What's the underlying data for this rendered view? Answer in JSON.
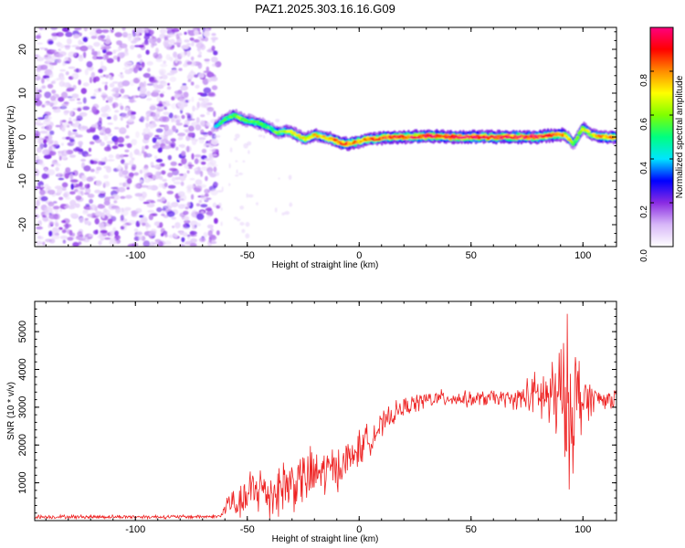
{
  "figure_title": "PAZ1.2025.303.16.16.G09",
  "chart_data": [
    {
      "type": "heatmap",
      "title": "PAZ1.2025.303.16.16.G09",
      "xlabel": "Height of straight line (km)",
      "ylabel": "Frequency (Hz)",
      "xlim": [
        -145,
        115
      ],
      "ylim": [
        -25,
        25
      ],
      "x_ticks": [
        -100,
        -50,
        0,
        50,
        100
      ],
      "x_tick_labels": [
        "-100",
        "-50",
        "0",
        "50",
        "100"
      ],
      "y_ticks": [
        -20,
        -10,
        0,
        10,
        20
      ],
      "y_tick_labels": [
        "-20",
        "-10",
        "0",
        "10",
        "20"
      ],
      "noise_region_x": [
        -145,
        -63
      ],
      "signal_ridge": {
        "x": [
          -64,
          -60,
          -56,
          -52,
          -48,
          -44,
          -40,
          -36,
          -32,
          -28,
          -24,
          -20,
          -16,
          -12,
          -8,
          -4,
          0,
          4,
          8,
          12,
          16,
          20,
          30,
          40,
          50,
          60,
          70,
          80,
          88,
          92,
          96,
          100,
          104,
          108,
          115
        ],
        "freq": [
          2.5,
          4.0,
          5.0,
          4.0,
          3.5,
          3.0,
          2.0,
          1.0,
          1.5,
          0.5,
          -0.5,
          0.5,
          0.0,
          -0.5,
          -1.5,
          -1.5,
          -1.0,
          -0.5,
          -0.5,
          0.0,
          0.0,
          0.0,
          0.2,
          0.0,
          0.0,
          0.0,
          0.0,
          0.0,
          0.5,
          0.5,
          -1.5,
          2.0,
          0.5,
          0.0,
          0.0
        ],
        "amplitude": [
          0.45,
          0.55,
          0.6,
          0.6,
          0.55,
          0.6,
          0.55,
          0.6,
          0.65,
          0.7,
          0.7,
          0.75,
          0.75,
          0.8,
          0.9,
          0.85,
          0.8,
          0.85,
          0.85,
          0.9,
          0.9,
          0.9,
          0.95,
          0.95,
          0.95,
          0.97,
          0.95,
          0.95,
          0.9,
          0.8,
          0.6,
          0.7,
          0.7,
          0.8,
          0.85
        ]
      },
      "colorbar": {
        "label": "Normalized spectral amplitude",
        "range": [
          0.0,
          1.0
        ],
        "ticks": [
          0.0,
          0.2,
          0.4,
          0.6,
          0.8
        ],
        "tick_labels": [
          "0.0",
          "0.2",
          "0.4",
          "0.6",
          "0.8"
        ],
        "colors": [
          "#ffffff",
          "#d8b8f8",
          "#8a2be2",
          "#0000ff",
          "#00e5ff",
          "#00ff80",
          "#80ff00",
          "#ffff00",
          "#ff8c00",
          "#ff0000",
          "#ff007f"
        ]
      }
    },
    {
      "type": "line",
      "xlabel": "Height of straight line (km)",
      "ylabel": "SNR (10 * v/v)",
      "xlim": [
        -145,
        115
      ],
      "ylim": [
        0,
        5800
      ],
      "x_ticks": [
        -100,
        -50,
        0,
        50,
        100
      ],
      "x_tick_labels": [
        "-100",
        "-50",
        "0",
        "50",
        "100"
      ],
      "y_ticks": [
        1000,
        2000,
        3000,
        4000,
        5000
      ],
      "y_tick_labels": [
        "1000",
        "2000",
        "3000",
        "4000",
        "5000"
      ],
      "line_color": "#ee2222",
      "envelope": {
        "x": [
          -145,
          -120,
          -100,
          -80,
          -62,
          -58,
          -54,
          -50,
          -45,
          -40,
          -35,
          -30,
          -25,
          -20,
          -15,
          -10,
          -5,
          0,
          5,
          10,
          15,
          20,
          25,
          30,
          40,
          50,
          60,
          70,
          75,
          80,
          85,
          90,
          93,
          95,
          97,
          100,
          105,
          110,
          115
        ],
        "mean": [
          100,
          100,
          100,
          100,
          110,
          500,
          400,
          600,
          900,
          700,
          900,
          1000,
          1100,
          1200,
          1300,
          1400,
          1600,
          1900,
          2200,
          2500,
          2800,
          3000,
          3100,
          3200,
          3250,
          3200,
          3250,
          3200,
          3300,
          3300,
          3250,
          3200,
          3100,
          3100,
          3200,
          3200,
          3250,
          3200,
          3250
        ],
        "spread": [
          60,
          60,
          60,
          60,
          60,
          500,
          400,
          800,
          900,
          800,
          1000,
          900,
          900,
          900,
          800,
          700,
          600,
          600,
          500,
          400,
          350,
          300,
          300,
          300,
          250,
          250,
          250,
          300,
          600,
          800,
          1200,
          1800,
          2600,
          2400,
          2000,
          1000,
          400,
          300,
          300
        ]
      }
    }
  ]
}
